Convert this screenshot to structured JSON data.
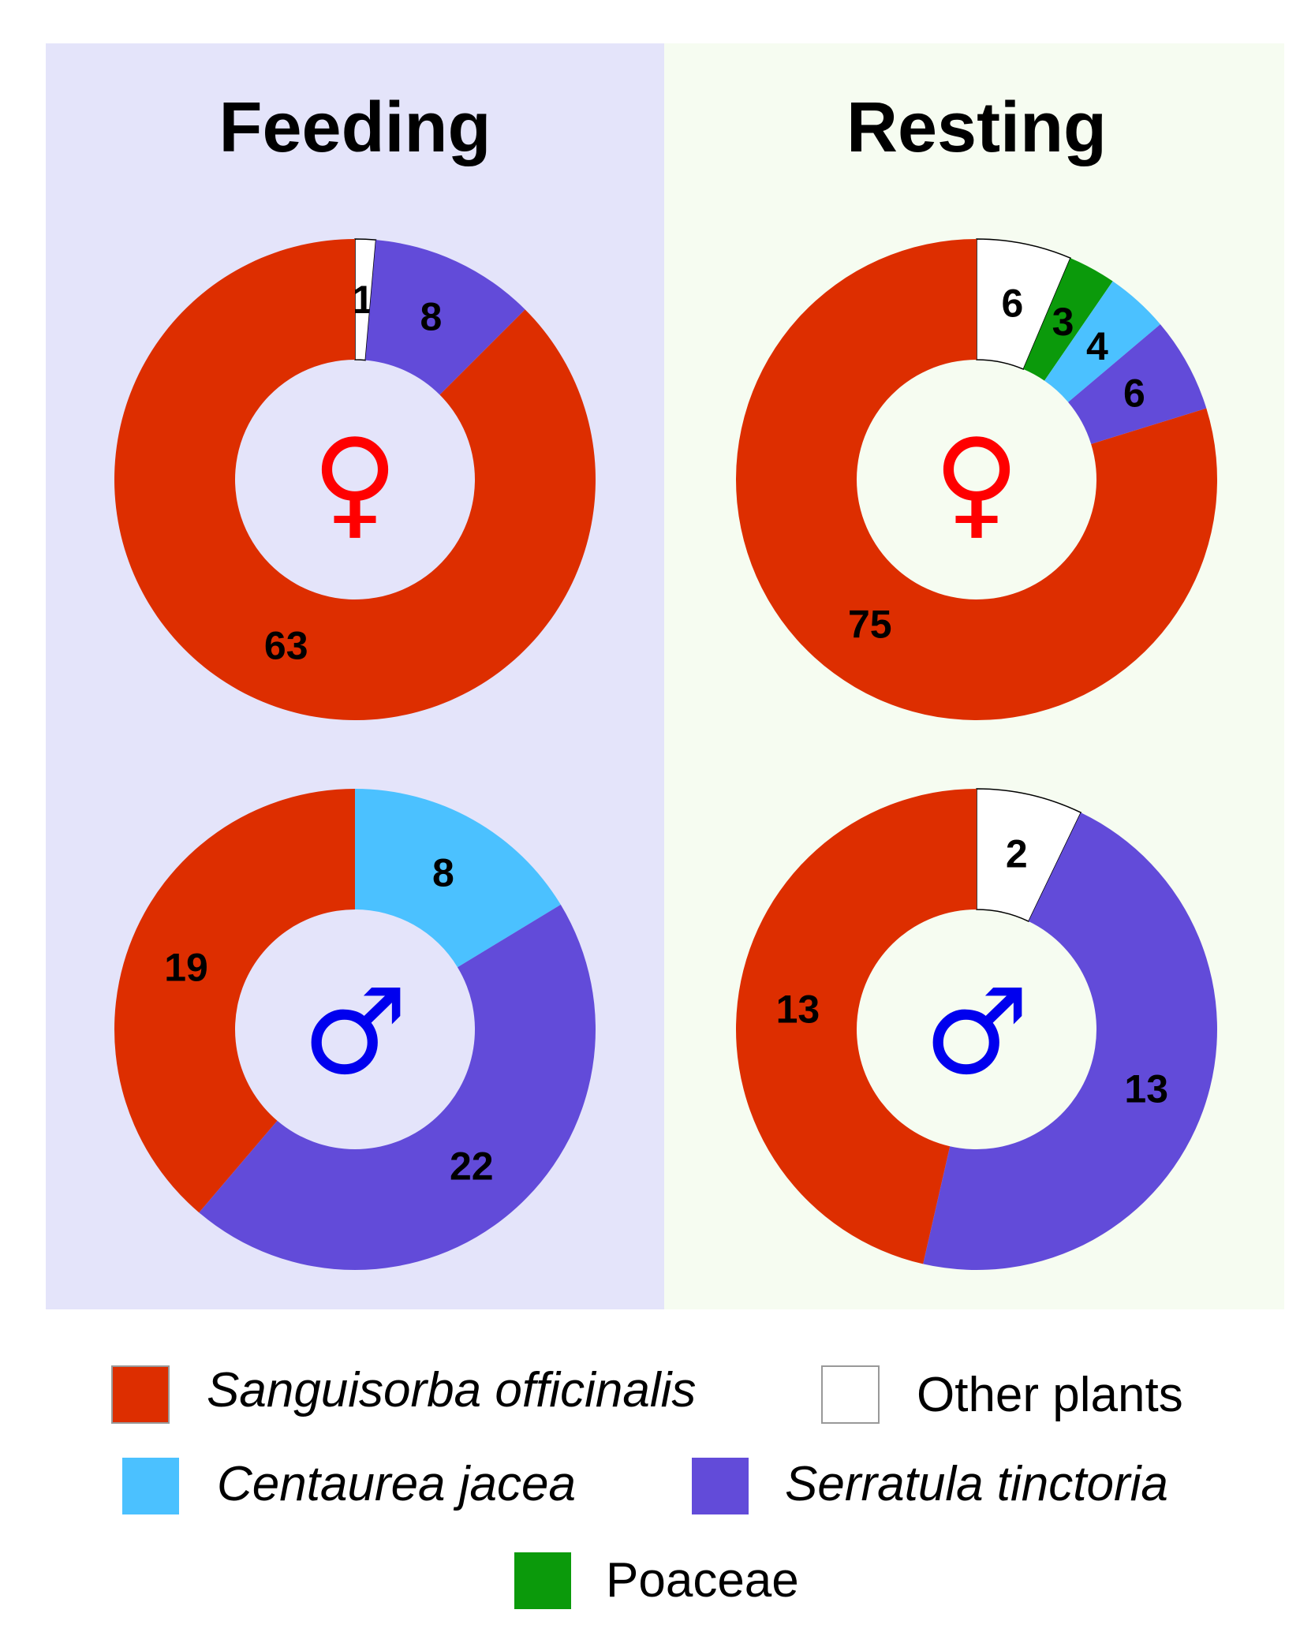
{
  "colors": {
    "feeding_bg": "#e4e4fa",
    "resting_bg": "#f6fcf1",
    "female_symbol": "#ff0000",
    "male_symbol": "#0000ee"
  },
  "categories": [
    {
      "key": "sanguisorba",
      "name": "Sanguisorba officinalis",
      "italic": true,
      "color": "#dd2e00"
    },
    {
      "key": "other",
      "name": "Other plants",
      "italic": false,
      "color": "#ffffff"
    },
    {
      "key": "centaurea",
      "name": "Centaurea jacea",
      "italic": true,
      "color": "#4bc1ff"
    },
    {
      "key": "serratula",
      "name": "Serratula tinctoria",
      "italic": true,
      "color": "#624bd9"
    },
    {
      "key": "poaceae",
      "name": "Poaceae",
      "italic": false,
      "color": "#0b9a0b"
    }
  ],
  "chart_data": [
    {
      "type": "pie",
      "subtype": "donut",
      "panel": "Feeding",
      "sex": "female",
      "symbol": "♀",
      "slices": [
        {
          "category": "other",
          "value": 1,
          "label": "1"
        },
        {
          "category": "serratula",
          "value": 8,
          "label": "8"
        },
        {
          "category": "sanguisorba",
          "value": 63,
          "label": "63"
        }
      ]
    },
    {
      "type": "pie",
      "subtype": "donut",
      "panel": "Resting",
      "sex": "female",
      "symbol": "♀",
      "slices": [
        {
          "category": "other",
          "value": 6,
          "label": "6"
        },
        {
          "category": "poaceae",
          "value": 3,
          "label": "3"
        },
        {
          "category": "centaurea",
          "value": 4,
          "label": "4"
        },
        {
          "category": "serratula",
          "value": 6,
          "label": "6"
        },
        {
          "category": "sanguisorba",
          "value": 75,
          "label": "75"
        }
      ]
    },
    {
      "type": "pie",
      "subtype": "donut",
      "panel": "Feeding",
      "sex": "male",
      "symbol": "♂",
      "slices": [
        {
          "category": "centaurea",
          "value": 8,
          "label": "8"
        },
        {
          "category": "serratula",
          "value": 22,
          "label": "22"
        },
        {
          "category": "sanguisorba",
          "value": 19,
          "label": "19"
        }
      ]
    },
    {
      "type": "pie",
      "subtype": "donut",
      "panel": "Resting",
      "sex": "male",
      "symbol": "♂",
      "slices": [
        {
          "category": "other",
          "value": 2,
          "label": "2"
        },
        {
          "category": "serratula",
          "value": 13,
          "label": "13"
        },
        {
          "category": "sanguisorba",
          "value": 13,
          "label": "13"
        }
      ]
    }
  ],
  "titles": {
    "feeding": "Feeding",
    "resting": "Resting"
  }
}
